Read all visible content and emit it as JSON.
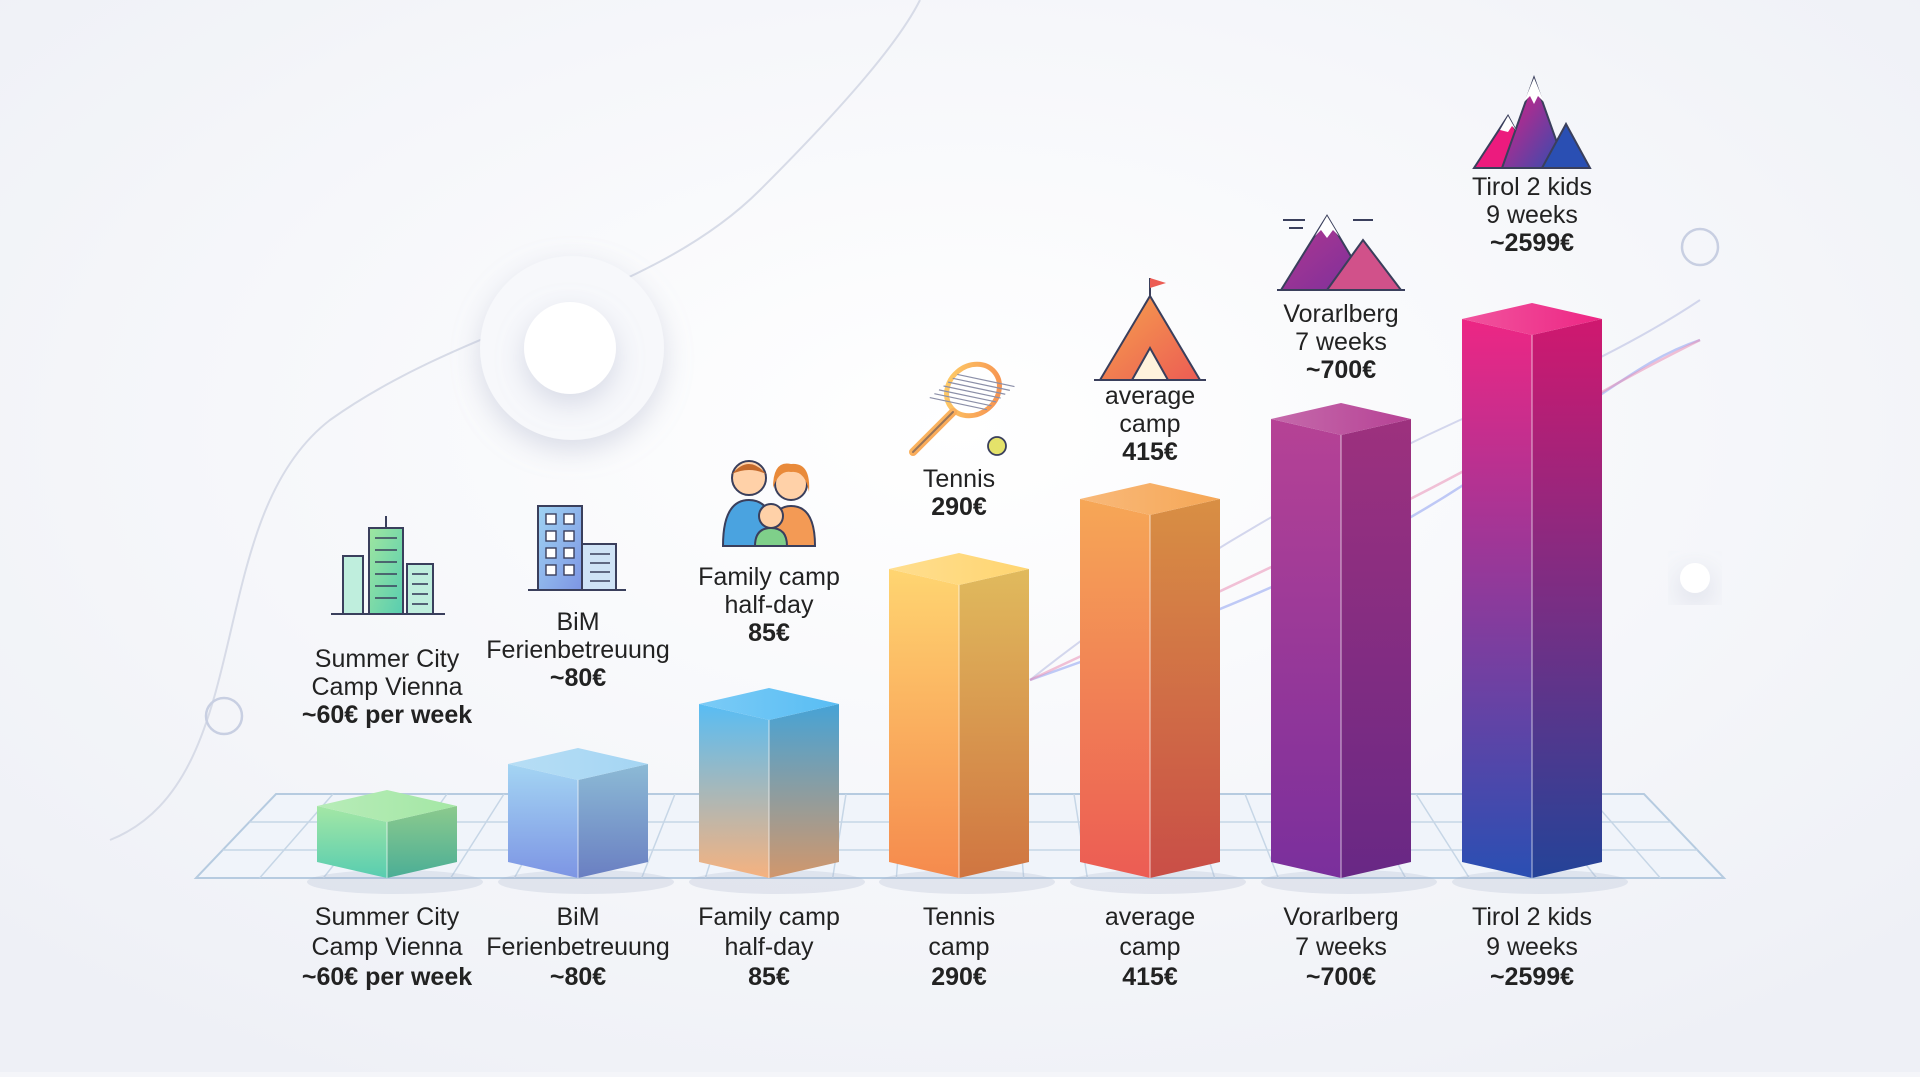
{
  "chart_data": {
    "type": "bar",
    "title": "",
    "xlabel": "",
    "ylabel": "",
    "categories": [
      {
        "axis_lines": [
          "Summer City",
          "Camp Vienna",
          "~60€ per week"
        ],
        "top_lines": [
          "Summer City",
          "Camp Vienna",
          "~60€ per week"
        ],
        "icon": "city-skyline-icon",
        "colors": [
          "#9fe6a0",
          "#58cdb0"
        ]
      },
      {
        "axis_lines": [
          "BiM",
          "Ferienbetreuung",
          "~80€"
        ],
        "top_lines": [
          "BiM",
          "Ferienbetreuung",
          "~80€"
        ],
        "icon": "office-building-icon",
        "colors": [
          "#9fd3f2",
          "#7d95e4"
        ]
      },
      {
        "axis_lines": [
          "Family camp",
          "half-day",
          "85€"
        ],
        "top_lines": [
          "Family camp",
          "half-day",
          "85€"
        ],
        "icon": "family-icon",
        "colors": [
          "#4fb9f3",
          "#f6b27f"
        ]
      },
      {
        "axis_lines": [
          "Tennis",
          "camp",
          "290€"
        ],
        "top_lines": [
          "Tennis",
          "290€"
        ],
        "icon": "tennis-racket-icon",
        "colors": [
          "#ffd36a",
          "#f58a4d"
        ]
      },
      {
        "axis_lines": [
          "average",
          "camp",
          "415€"
        ],
        "top_lines": [
          "average",
          "camp",
          "415€"
        ],
        "icon": "camping-tent-icon",
        "colors": [
          "#f6a24d",
          "#ec5c54"
        ]
      },
      {
        "axis_lines": [
          "Vorarlberg",
          "7 weeks",
          "~700€"
        ],
        "top_lines": [
          "Vorarlberg",
          "7 weeks",
          "~700€"
        ],
        "icon": "mountains-icon",
        "colors": [
          "#b2388f",
          "#7a2f9c"
        ]
      },
      {
        "axis_lines": [
          "Tirol 2 kids",
          "9 weeks",
          "~2599€"
        ],
        "top_lines": [
          "Tirol 2 kids",
          "9 weeks",
          "~2599€"
        ],
        "icon": "mountain-peaks-icon",
        "colors": [
          "#ec1b7e",
          "#2a4fb3"
        ]
      }
    ],
    "values": [
      60,
      80,
      85,
      290,
      415,
      700,
      2599
    ],
    "scale": "non-linear (displayed heights are not proportional to values)",
    "grid": true,
    "legend": "none"
  }
}
